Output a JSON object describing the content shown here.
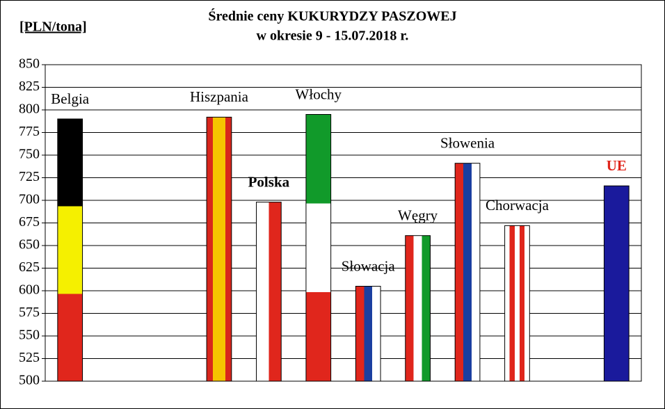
{
  "chart_data": {
    "type": "bar",
    "title": "Średnie ceny KUKURYDZY PASZOWEJ",
    "subtitle": "w okresie  9 - 15.07.2018 r.",
    "y_label": "[PLN/tona]",
    "categories": [
      "Belgia",
      null,
      null,
      "Hiszpania",
      "Polska",
      "Włochy",
      "Słowacja",
      "Węgry",
      "Słowenia",
      "Chorwacja",
      null,
      "UE"
    ],
    "values": [
      790,
      null,
      null,
      792,
      698,
      795,
      605,
      661,
      741,
      672,
      null,
      716
    ],
    "flags": [
      {
        "dir": "h",
        "colors": [
          "#000000",
          "#f5f000",
          "#e0261c"
        ]
      },
      null,
      null,
      {
        "dir": "v",
        "colors": [
          "#d8261c",
          "#f6c400",
          "#f6c400",
          "#d8261c"
        ]
      },
      {
        "dir": "v",
        "colors": [
          "#ffffff",
          "#e0261c"
        ]
      },
      {
        "dir": "h",
        "colors": [
          "#119a2a",
          "#ffffff",
          "#e0261c"
        ]
      },
      {
        "dir": "v",
        "colors": [
          "#e0261c",
          "#1b3fa0",
          "#ffffff"
        ]
      },
      {
        "dir": "v",
        "colors": [
          "#e0261c",
          "#ffffff",
          "#119a2a"
        ]
      },
      {
        "dir": "v",
        "colors": [
          "#e0261c",
          "#1b3fa0",
          "#ffffff"
        ]
      },
      {
        "dir": "v",
        "colors": [
          "#ffffff",
          "#e0261c",
          "#ffffff",
          "#e0261c",
          "#ffffff"
        ]
      },
      null,
      {
        "dir": "v",
        "colors": [
          "#1a1a9c"
        ]
      }
    ],
    "ylim": [
      500,
      850
    ],
    "yticks": [
      500,
      525,
      550,
      575,
      600,
      625,
      650,
      675,
      700,
      725,
      750,
      775,
      800,
      825,
      850
    ],
    "grid": true
  }
}
